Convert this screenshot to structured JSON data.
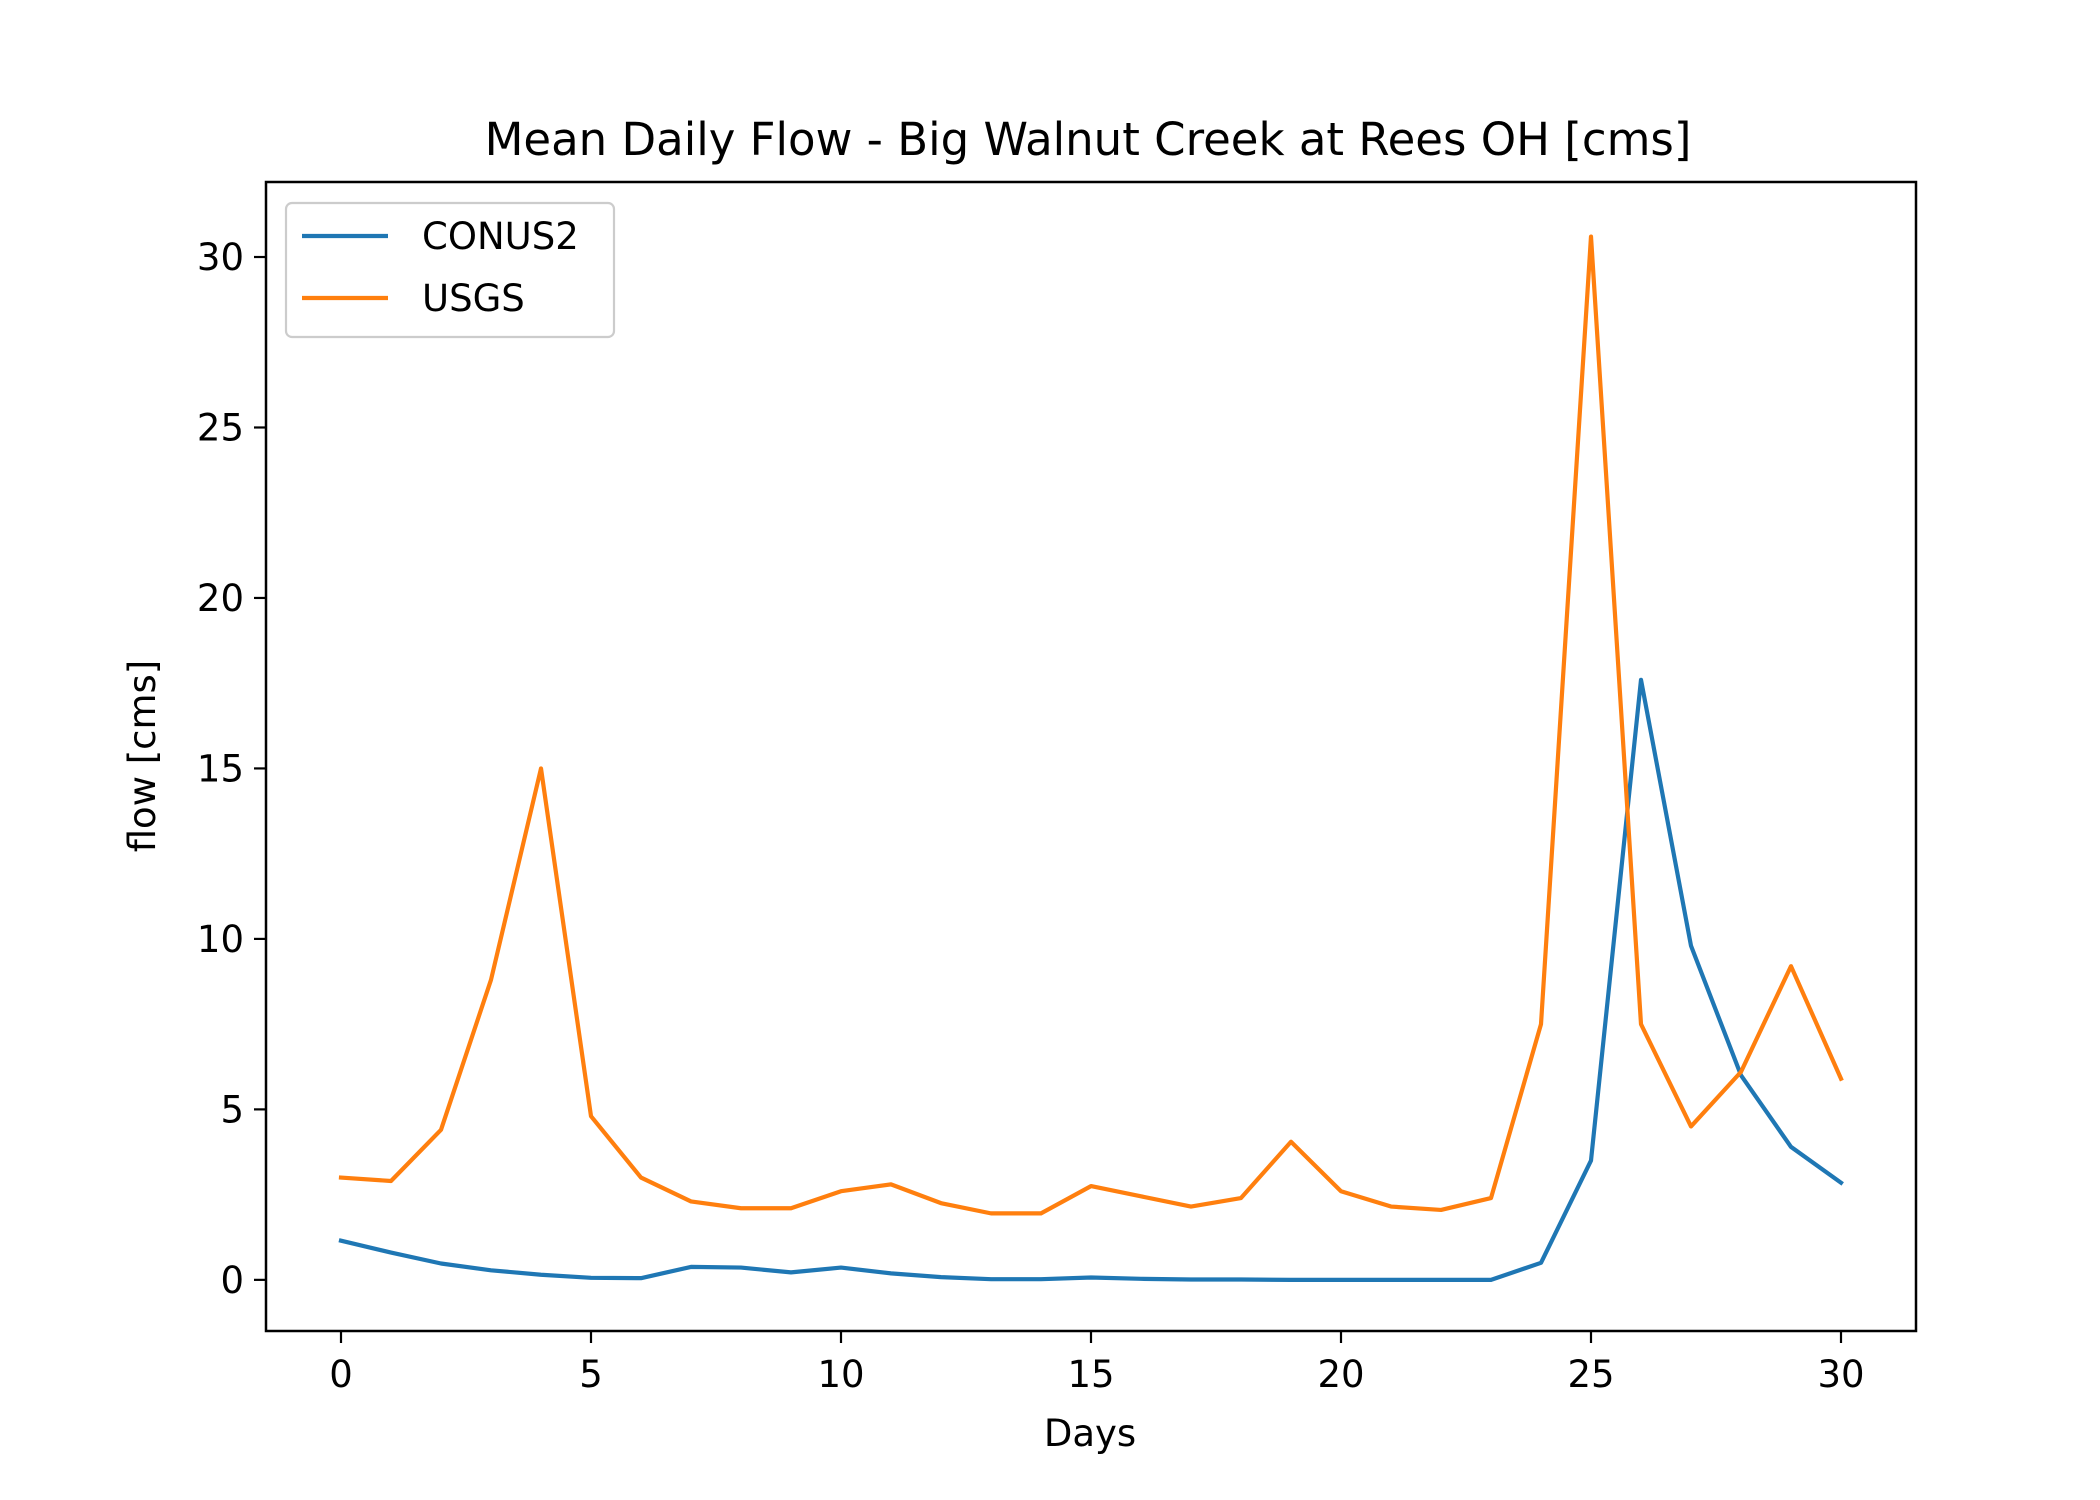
{
  "chart_data": {
    "type": "line",
    "title": "Mean Daily Flow - Big Walnut Creek at Rees OH [cms]",
    "xlabel": "Days",
    "ylabel": "flow [cms]",
    "xlim": [
      -1.5,
      31.5
    ],
    "ylim": [
      -1.5,
      32.2
    ],
    "xticks": [
      0,
      5,
      10,
      15,
      20,
      25,
      30
    ],
    "yticks": [
      0,
      5,
      10,
      15,
      20,
      25,
      30
    ],
    "grid": false,
    "legend_position": "top-left",
    "x": [
      0,
      1,
      2,
      3,
      4,
      5,
      6,
      7,
      8,
      9,
      10,
      11,
      12,
      13,
      14,
      15,
      16,
      17,
      18,
      19,
      20,
      21,
      22,
      23,
      24,
      25,
      26,
      27,
      28,
      29,
      30
    ],
    "series": [
      {
        "name": "CONUS2",
        "color": "#1f77b4",
        "values": [
          1.15,
          0.8,
          0.48,
          0.28,
          0.15,
          0.06,
          0.05,
          0.38,
          0.36,
          0.22,
          0.36,
          0.19,
          0.08,
          0.02,
          0.02,
          0.07,
          0.03,
          0.01,
          0.01,
          0.0,
          0.0,
          0.0,
          0.0,
          0.0,
          0.5,
          3.5,
          17.6,
          9.8,
          6.0,
          3.9,
          2.85
        ]
      },
      {
        "name": "USGS",
        "color": "#ff7f0e",
        "values": [
          3.0,
          2.9,
          4.4,
          8.8,
          15.0,
          4.8,
          3.0,
          2.3,
          2.1,
          2.1,
          2.6,
          2.8,
          2.25,
          1.95,
          1.95,
          2.75,
          2.45,
          2.15,
          2.4,
          4.05,
          2.6,
          2.15,
          2.05,
          2.4,
          7.5,
          30.6,
          7.5,
          4.5,
          6.1,
          9.2,
          5.9
        ]
      }
    ]
  }
}
